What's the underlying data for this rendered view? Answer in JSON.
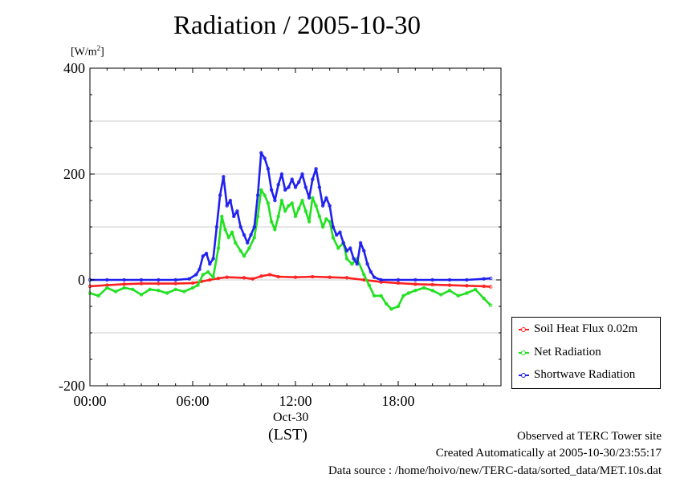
{
  "chart_data": {
    "type": "line",
    "title": "Radiation / 2005-10-30",
    "ylabel_unit": "[W/m²]",
    "unit_base": "[W/m",
    "unit_exp": "2",
    "unit_close": "]",
    "ylim": [
      -200,
      400
    ],
    "yticks": [
      -200,
      0,
      200,
      400
    ],
    "ygrid": [
      -100,
      0,
      100,
      200,
      300
    ],
    "xlim_hours": [
      0,
      24
    ],
    "xticks": [
      {
        "hour": 0,
        "label": "00:00"
      },
      {
        "hour": 6,
        "label": "06:00"
      },
      {
        "hour": 12,
        "label": "12:00"
      },
      {
        "hour": 18,
        "label": "18:00"
      }
    ],
    "date_label": "Oct-30",
    "time_zone_label": "(LST)",
    "legend_position": "right",
    "series": [
      {
        "name": "Soil Heat Flux 0.02m",
        "color": "#ff2020",
        "x": [
          0,
          1,
          2,
          3,
          4,
          5,
          6,
          6.5,
          7,
          7.5,
          8,
          9,
          9.5,
          10,
          10.5,
          11,
          12,
          13,
          14,
          15,
          16,
          17,
          18,
          19,
          20,
          21,
          22,
          23,
          23.4
        ],
        "y": [
          -12,
          -10,
          -8,
          -7,
          -7,
          -7,
          -6,
          -3,
          0,
          3,
          5,
          4,
          2,
          7,
          10,
          6,
          5,
          6,
          5,
          4,
          0,
          -4,
          -6,
          -8,
          -9,
          -10,
          -11,
          -12,
          -13
        ]
      },
      {
        "name": "Net Radiation",
        "color": "#20e020",
        "x": [
          0,
          0.5,
          1,
          1.5,
          2,
          2.5,
          3,
          3.5,
          4,
          4.5,
          5,
          5.5,
          6,
          6.3,
          6.6,
          6.9,
          7.2,
          7.5,
          7.7,
          7.9,
          8.1,
          8.3,
          8.5,
          8.8,
          9,
          9.3,
          9.6,
          9.8,
          10,
          10.2,
          10.4,
          10.6,
          10.8,
          11,
          11.2,
          11.4,
          11.6,
          11.8,
          12,
          12.2,
          12.4,
          12.6,
          12.8,
          13,
          13.2,
          13.4,
          13.6,
          13.8,
          14,
          14.2,
          14.5,
          14.8,
          15,
          15.3,
          15.6,
          16,
          16.3,
          16.6,
          17,
          17.3,
          17.6,
          18,
          18.3,
          18.6,
          19,
          19.5,
          20,
          20.5,
          21,
          21.5,
          22,
          22.5,
          23,
          23.4
        ],
        "y": [
          -25,
          -30,
          -15,
          -22,
          -15,
          -18,
          -28,
          -18,
          -20,
          -25,
          -18,
          -22,
          -15,
          -10,
          10,
          15,
          5,
          60,
          120,
          95,
          80,
          90,
          70,
          55,
          45,
          60,
          80,
          120,
          170,
          160,
          145,
          110,
          95,
          120,
          150,
          130,
          140,
          145,
          120,
          135,
          150,
          130,
          110,
          155,
          140,
          120,
          100,
          115,
          110,
          80,
          60,
          70,
          40,
          30,
          40,
          10,
          -10,
          -30,
          -30,
          -45,
          -55,
          -50,
          -30,
          -25,
          -20,
          -15,
          -20,
          -28,
          -20,
          -30,
          -25,
          -18,
          -35,
          -48
        ]
      },
      {
        "name": "Shortwave Radiation",
        "color": "#2020f0",
        "x": [
          0,
          1,
          2,
          3,
          4,
          5,
          5.8,
          6.2,
          6.4,
          6.6,
          6.8,
          7,
          7.2,
          7.4,
          7.6,
          7.8,
          8,
          8.2,
          8.4,
          8.6,
          8.8,
          9,
          9.2,
          9.4,
          9.6,
          9.8,
          10,
          10.2,
          10.4,
          10.6,
          10.8,
          11,
          11.2,
          11.4,
          11.6,
          11.8,
          12,
          12.2,
          12.4,
          12.6,
          12.8,
          13,
          13.2,
          13.4,
          13.6,
          13.8,
          14,
          14.2,
          14.4,
          14.6,
          14.8,
          15,
          15.2,
          15.4,
          15.6,
          15.8,
          16,
          16.2,
          16.4,
          16.6,
          17,
          18,
          19,
          20,
          21,
          22,
          23,
          23.4
        ],
        "y": [
          0,
          0,
          0,
          0,
          0,
          0,
          2,
          10,
          20,
          45,
          50,
          30,
          40,
          100,
          160,
          195,
          140,
          150,
          120,
          130,
          100,
          85,
          70,
          85,
          100,
          160,
          240,
          230,
          210,
          170,
          150,
          180,
          200,
          170,
          175,
          190,
          175,
          185,
          200,
          175,
          155,
          190,
          210,
          175,
          140,
          155,
          140,
          100,
          85,
          90,
          70,
          55,
          60,
          40,
          30,
          70,
          55,
          30,
          15,
          5,
          0,
          0,
          0,
          0,
          0,
          0,
          2,
          3
        ]
      }
    ]
  },
  "footer": {
    "site": "Observed at TERC Tower site",
    "created": "Created Automatically at 2005-10-30/23:55:17",
    "source": "Data source : /home/hoivo/new/TERC-data/sorted_data/MET.10s.dat"
  }
}
